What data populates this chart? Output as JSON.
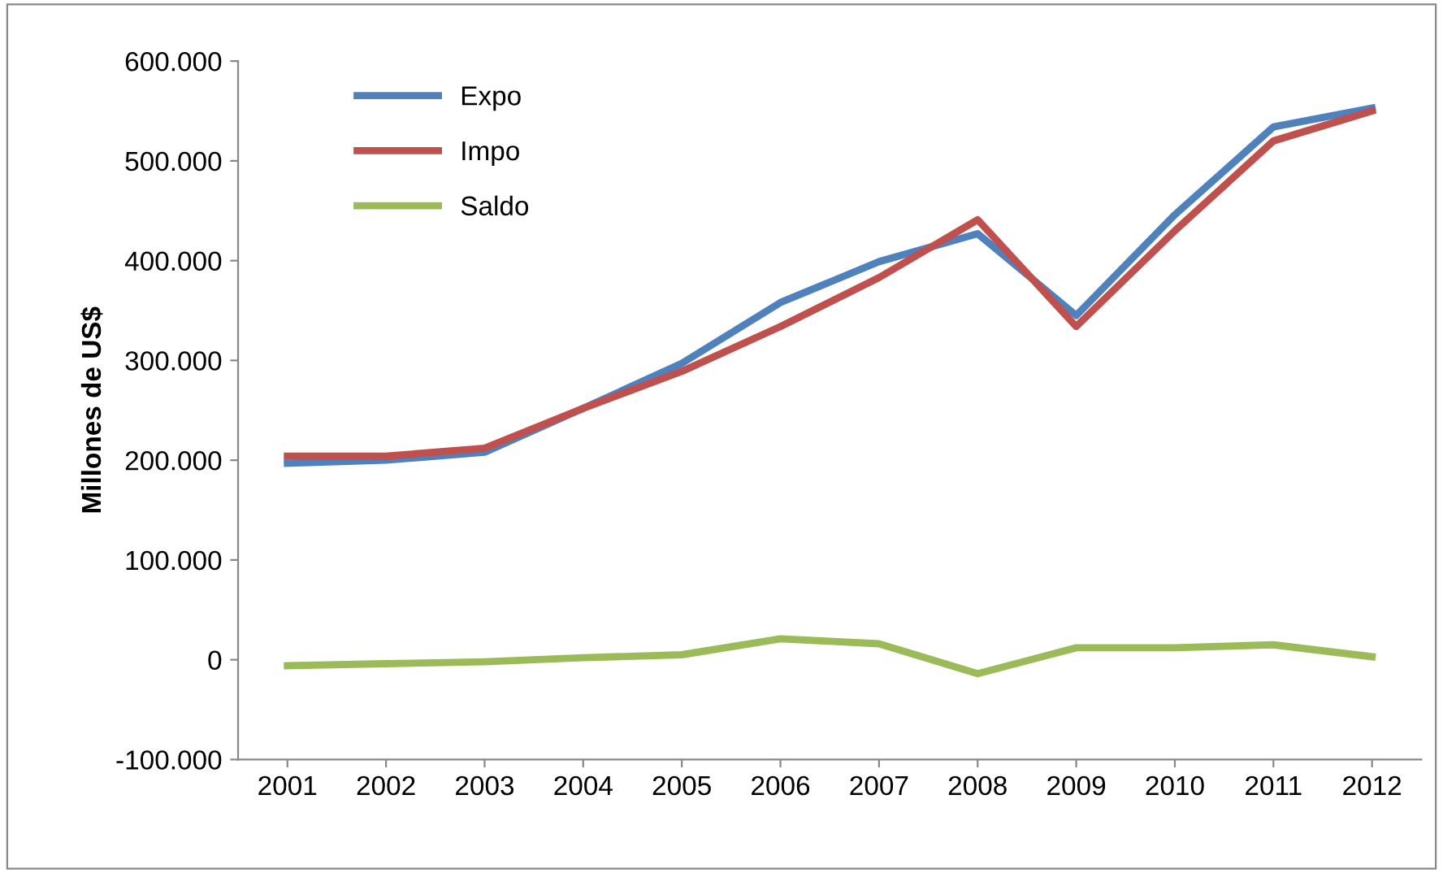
{
  "chart_data": {
    "type": "line",
    "ylabel": "Millones de US$",
    "categories": [
      "2001",
      "2002",
      "2003",
      "2004",
      "2005",
      "2006",
      "2007",
      "2008",
      "2009",
      "2010",
      "2011",
      "2012"
    ],
    "series": [
      {
        "name": "Expo",
        "color": "#4f81bd",
        "values": [
          197000,
          200000,
          208000,
          252000,
          297000,
          358000,
          399000,
          427000,
          345000,
          446000,
          534000,
          553000
        ]
      },
      {
        "name": "Impo",
        "color": "#c0504d",
        "values": [
          204000,
          204000,
          212000,
          252000,
          289000,
          334000,
          383000,
          441000,
          334000,
          430000,
          520000,
          550000
        ]
      },
      {
        "name": "Saldo",
        "color": "#9bbb59",
        "values": [
          -6000,
          -4000,
          -2000,
          2000,
          5000,
          21000,
          16000,
          -14000,
          12000,
          12000,
          15000,
          3000
        ]
      }
    ],
    "ylim": [
      -100000,
      600000
    ],
    "yticks": [
      {
        "value": -100000,
        "label": "-100.000"
      },
      {
        "value": 0,
        "label": "0"
      },
      {
        "value": 100000,
        "label": "100.000"
      },
      {
        "value": 200000,
        "label": "200.000"
      },
      {
        "value": 300000,
        "label": "300.000"
      },
      {
        "value": 400000,
        "label": "400.000"
      },
      {
        "value": 500000,
        "label": "500.000"
      },
      {
        "value": 600000,
        "label": "600.000"
      }
    ],
    "grid": false,
    "legend": "top left",
    "marker": "none",
    "line_style": "solid"
  }
}
